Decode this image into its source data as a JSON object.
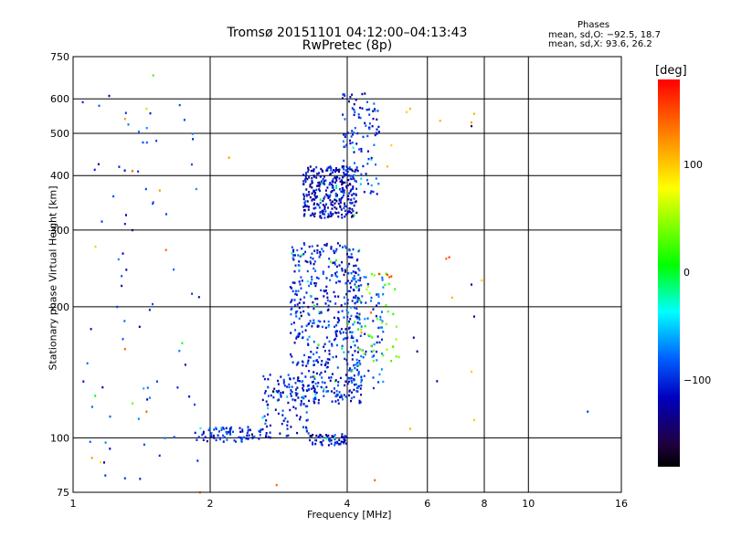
{
  "title_line1": "Tromsø 20151101 04:12:00–04:13:43",
  "title_line2": "RwPretec (8p)",
  "stats": {
    "heading": "Phases",
    "o_line": "mean, sd,O: −92.5, 18.7",
    "x_line": "mean, sd,X:  93.6, 26.2"
  },
  "colorbar": {
    "unit": "[deg]",
    "ticks": [
      {
        "label": "100",
        "value": 100
      },
      {
        "label": "0",
        "value": 0
      },
      {
        "label": "−100",
        "value": -100
      }
    ],
    "range": [
      -180,
      180
    ],
    "colors": [
      "#000000",
      "#200040",
      "#0000c0",
      "#0060ff",
      "#00ffff",
      "#00ff00",
      "#ffff00",
      "#ff8000",
      "#ff0000"
    ]
  },
  "chart_data": {
    "type": "scatter",
    "title": "Tromsø 20151101 04:12:00–04:13:43 RwPretec (8p)",
    "xlabel": "Frequency [MHz]",
    "ylabel": "Stationary phase Virtual Height [km]",
    "x_scale": "log",
    "y_scale": "log",
    "xlim": [
      1,
      16
    ],
    "ylim": [
      75,
      750
    ],
    "grid": true,
    "x_ticks": [
      {
        "label": "1",
        "value": 1
      },
      {
        "label": "2",
        "value": 2
      },
      {
        "label": "4",
        "value": 4
      },
      {
        "label": "6",
        "value": 6
      },
      {
        "label": "8",
        "value": 8
      },
      {
        "label": "10",
        "value": 10
      },
      {
        "label": "16",
        "value": 16
      }
    ],
    "x_grid": [
      2,
      4,
      6,
      8,
      10
    ],
    "y_ticks": [
      {
        "label": "75",
        "value": 75
      },
      {
        "label": "100",
        "value": 100
      },
      {
        "label": "200",
        "value": 200
      },
      {
        "label": "300",
        "value": 300
      },
      {
        "label": "400",
        "value": 400
      },
      {
        "label": "500",
        "value": 500
      },
      {
        "label": "600",
        "value": 600
      },
      {
        "label": "750",
        "value": 750
      }
    ],
    "y_grid": [
      100,
      200,
      300,
      400,
      500,
      600
    ],
    "clusters": [
      {
        "x": [
          1.85,
          2.6
        ],
        "y": [
          98,
          106
        ],
        "phase": -100,
        "n": 80
      },
      {
        "x": [
          2.6,
          3.4
        ],
        "y": [
          100,
          140
        ],
        "phase": -100,
        "n": 120
      },
      {
        "x": [
          3.0,
          4.3
        ],
        "y": [
          120,
          280
        ],
        "phase": -100,
        "n": 520
      },
      {
        "x": [
          3.3,
          4.0
        ],
        "y": [
          96,
          102
        ],
        "phase": -105,
        "n": 60
      },
      {
        "x": [
          4.0,
          4.8
        ],
        "y": [
          130,
          240
        ],
        "phase": -85,
        "n": 100
      },
      {
        "x": [
          3.2,
          4.2
        ],
        "y": [
          320,
          420
        ],
        "phase": -110,
        "n": 320
      },
      {
        "x": [
          3.9,
          4.7
        ],
        "y": [
          360,
          620
        ],
        "phase": -95,
        "n": 110
      },
      {
        "x": [
          4.2,
          5.2
        ],
        "y": [
          150,
          240
        ],
        "phase": 40,
        "n": 40
      },
      {
        "x": [
          1.05,
          1.9
        ],
        "y": [
          80,
          600
        ],
        "phase": -90,
        "n": 70
      }
    ],
    "scattered_points": [
      {
        "x": 1.2,
        "y": 610,
        "phase": -130
      },
      {
        "x": 1.5,
        "y": 680,
        "phase": 30
      },
      {
        "x": 1.45,
        "y": 570,
        "phase": 60
      },
      {
        "x": 1.3,
        "y": 540,
        "phase": 130
      },
      {
        "x": 2.2,
        "y": 440,
        "phase": 130
      },
      {
        "x": 1.35,
        "y": 410,
        "phase": 150
      },
      {
        "x": 1.12,
        "y": 275,
        "phase": 60
      },
      {
        "x": 1.55,
        "y": 370,
        "phase": 130
      },
      {
        "x": 1.6,
        "y": 270,
        "phase": 150
      },
      {
        "x": 1.3,
        "y": 160,
        "phase": 150
      },
      {
        "x": 1.35,
        "y": 120,
        "phase": 40
      },
      {
        "x": 1.45,
        "y": 115,
        "phase": 150
      },
      {
        "x": 1.1,
        "y": 90,
        "phase": 130
      },
      {
        "x": 1.15,
        "y": 88,
        "phase": 100
      },
      {
        "x": 2.8,
        "y": 78,
        "phase": 150
      },
      {
        "x": 1.9,
        "y": 75,
        "phase": 130
      },
      {
        "x": 4.6,
        "y": 80,
        "phase": 150
      },
      {
        "x": 5.0,
        "y": 235,
        "phase": 160
      },
      {
        "x": 4.9,
        "y": 237,
        "phase": 160
      },
      {
        "x": 4.95,
        "y": 234,
        "phase": 150
      },
      {
        "x": 4.7,
        "y": 238,
        "phase": 160
      },
      {
        "x": 6.6,
        "y": 258,
        "phase": 150
      },
      {
        "x": 6.7,
        "y": 260,
        "phase": 160
      },
      {
        "x": 6.8,
        "y": 210,
        "phase": 120
      },
      {
        "x": 7.9,
        "y": 230,
        "phase": 110
      },
      {
        "x": 7.5,
        "y": 225,
        "phase": -110
      },
      {
        "x": 7.6,
        "y": 190,
        "phase": -120
      },
      {
        "x": 7.5,
        "y": 530,
        "phase": 130
      },
      {
        "x": 7.6,
        "y": 555,
        "phase": 120
      },
      {
        "x": 7.5,
        "y": 520,
        "phase": -150
      },
      {
        "x": 6.4,
        "y": 535,
        "phase": 120
      },
      {
        "x": 5.5,
        "y": 570,
        "phase": 120
      },
      {
        "x": 5.4,
        "y": 560,
        "phase": 110
      },
      {
        "x": 5.0,
        "y": 470,
        "phase": 110
      },
      {
        "x": 4.9,
        "y": 420,
        "phase": 120
      },
      {
        "x": 6.3,
        "y": 135,
        "phase": -120
      },
      {
        "x": 7.5,
        "y": 142,
        "phase": 110
      },
      {
        "x": 7.6,
        "y": 110,
        "phase": 110
      },
      {
        "x": 5.6,
        "y": 170,
        "phase": -120
      },
      {
        "x": 5.7,
        "y": 158,
        "phase": -120
      },
      {
        "x": 5.5,
        "y": 105,
        "phase": 120
      },
      {
        "x": 13.5,
        "y": 115,
        "phase": -90
      },
      {
        "x": 1.25,
        "y": 200,
        "phase": -90
      },
      {
        "x": 1.4,
        "y": 180,
        "phase": -110
      },
      {
        "x": 1.3,
        "y": 310,
        "phase": -100
      },
      {
        "x": 1.35,
        "y": 300,
        "phase": -130
      },
      {
        "x": 1.05,
        "y": 590,
        "phase": -100
      }
    ]
  }
}
